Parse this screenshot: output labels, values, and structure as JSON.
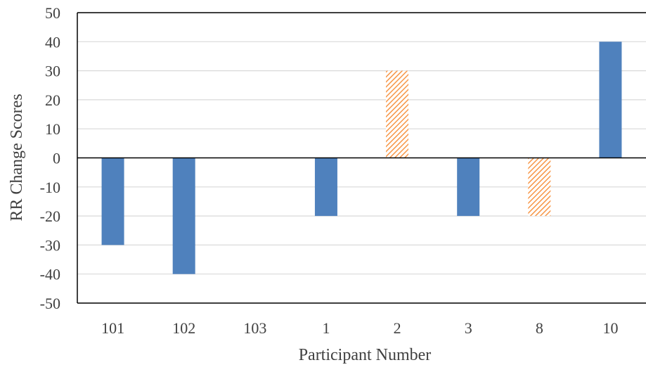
{
  "chart_data": {
    "type": "bar",
    "title": "",
    "xlabel": "Participant Number",
    "ylabel": "RR Change Scores",
    "categories": [
      "101",
      "102",
      "103",
      "1",
      "2",
      "3",
      "8",
      "10"
    ],
    "values": [
      -30,
      -40,
      0,
      -20,
      30,
      -20,
      -20,
      40
    ],
    "bar_styles": [
      "solid",
      "solid",
      "solid",
      "solid",
      "hatched",
      "solid",
      "hatched",
      "solid"
    ],
    "ylim": [
      -50,
      50
    ],
    "yticks": [
      -50,
      -40,
      -30,
      -20,
      -10,
      0,
      10,
      20,
      30,
      40,
      50
    ],
    "ytick_labels": [
      "-50",
      "-40",
      "-30",
      "-20",
      "-10",
      "0",
      "10",
      "20",
      "30",
      "40",
      "50"
    ],
    "grid": true,
    "legend": "none",
    "colors": {
      "solid_bar": "#4f81bd",
      "hatched_bar": "#f79646",
      "gridline": "#d9d9d9",
      "axis": "#000000",
      "text": "#404040"
    }
  }
}
